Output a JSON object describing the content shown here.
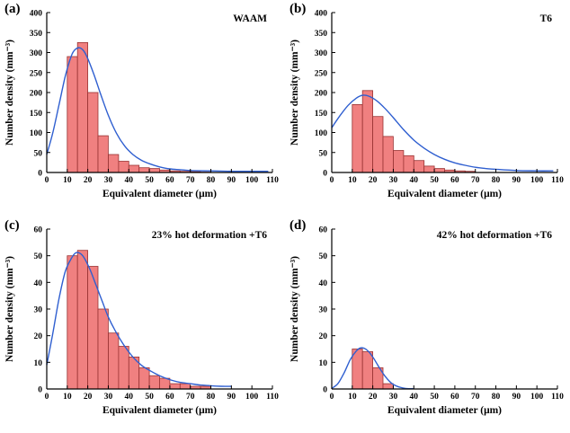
{
  "style": {
    "bar_fill": "#F08080",
    "bar_stroke": "#993333",
    "curve_color": "#2F5FD0",
    "axis_color": "#000000"
  },
  "chart_data": [
    {
      "type": "bar",
      "panel_label": "(a)",
      "title": "WAAM",
      "xlabel": "Equivalent diameter (μm)",
      "ylabel": "Number density (mm⁻³)",
      "xlim": [
        0,
        110
      ],
      "ylim": [
        0,
        400
      ],
      "xticks": [
        0,
        10,
        20,
        30,
        40,
        50,
        60,
        70,
        80,
        90,
        100,
        110
      ],
      "yticks": [
        0,
        50,
        100,
        150,
        200,
        250,
        300,
        350,
        400
      ],
      "bins_start": 10,
      "bin_width": 5,
      "bar_values": [
        290,
        325,
        200,
        92,
        45,
        28,
        18,
        12,
        10,
        6,
        4,
        3,
        2,
        1
      ],
      "curve_points": [
        [
          0,
          45
        ],
        [
          3,
          100
        ],
        [
          6,
          170
        ],
        [
          9,
          240
        ],
        [
          12,
          292
        ],
        [
          14,
          308
        ],
        [
          16,
          312
        ],
        [
          18,
          304
        ],
        [
          20,
          285
        ],
        [
          23,
          245
        ],
        [
          26,
          200
        ],
        [
          30,
          143
        ],
        [
          34,
          98
        ],
        [
          38,
          66
        ],
        [
          42,
          45
        ],
        [
          46,
          31
        ],
        [
          50,
          22
        ],
        [
          55,
          14
        ],
        [
          60,
          9
        ],
        [
          65,
          7
        ],
        [
          70,
          5
        ],
        [
          80,
          4
        ],
        [
          90,
          3
        ],
        [
          100,
          3
        ],
        [
          108,
          3
        ]
      ]
    },
    {
      "type": "bar",
      "panel_label": "(b)",
      "title": "T6",
      "xlabel": "Equivalent diameter (μm)",
      "ylabel": "Number density (mm⁻³)",
      "xlim": [
        0,
        110
      ],
      "ylim": [
        0,
        400
      ],
      "xticks": [
        0,
        10,
        20,
        30,
        40,
        50,
        60,
        70,
        80,
        90,
        100,
        110
      ],
      "yticks": [
        0,
        50,
        100,
        150,
        200,
        250,
        300,
        350,
        400
      ],
      "bins_start": 10,
      "bin_width": 5,
      "bar_values": [
        170,
        205,
        140,
        90,
        55,
        42,
        30,
        16,
        10,
        6,
        4,
        3
      ],
      "curve_points": [
        [
          0,
          112
        ],
        [
          4,
          142
        ],
        [
          8,
          168
        ],
        [
          12,
          186
        ],
        [
          15,
          193
        ],
        [
          18,
          191
        ],
        [
          22,
          179
        ],
        [
          26,
          160
        ],
        [
          30,
          137
        ],
        [
          35,
          107
        ],
        [
          40,
          81
        ],
        [
          45,
          61
        ],
        [
          50,
          45
        ],
        [
          55,
          33
        ],
        [
          60,
          24
        ],
        [
          65,
          18
        ],
        [
          70,
          13
        ],
        [
          75,
          10
        ],
        [
          80,
          8
        ],
        [
          90,
          5
        ],
        [
          100,
          4
        ],
        [
          108,
          4
        ]
      ]
    },
    {
      "type": "bar",
      "panel_label": "(c)",
      "title": "23% hot deformation +T6",
      "xlabel": "Equivalent diameter (μm)",
      "ylabel": "Number density (mm⁻³)",
      "xlim": [
        0,
        110
      ],
      "ylim": [
        0,
        60
      ],
      "xticks": [
        0,
        10,
        20,
        30,
        40,
        50,
        60,
        70,
        80,
        90,
        100,
        110
      ],
      "yticks": [
        0,
        10,
        20,
        30,
        40,
        50,
        60
      ],
      "bins_start": 10,
      "bin_width": 5,
      "bar_values": [
        50,
        52,
        46,
        30,
        21,
        16,
        12,
        8,
        5,
        4,
        2,
        2,
        1,
        1
      ],
      "curve_points": [
        [
          0,
          9
        ],
        [
          3,
          21
        ],
        [
          6,
          34
        ],
        [
          9,
          44
        ],
        [
          12,
          49
        ],
        [
          14,
          51
        ],
        [
          16,
          51
        ],
        [
          18,
          49.5
        ],
        [
          21,
          45
        ],
        [
          24,
          39
        ],
        [
          27,
          33
        ],
        [
          30,
          27
        ],
        [
          34,
          21
        ],
        [
          38,
          16
        ],
        [
          42,
          12
        ],
        [
          46,
          9
        ],
        [
          50,
          7
        ],
        [
          55,
          5
        ],
        [
          60,
          3.5
        ],
        [
          65,
          2.5
        ],
        [
          70,
          2
        ],
        [
          75,
          1.5
        ],
        [
          80,
          1.2
        ],
        [
          85,
          1
        ],
        [
          90,
          1
        ]
      ]
    },
    {
      "type": "bar",
      "panel_label": "(d)",
      "title": "42% hot deformation +T6",
      "xlabel": "Equivalent diameter (μm)",
      "ylabel": "Number density (mm⁻³)",
      "xlim": [
        0,
        110
      ],
      "ylim": [
        0,
        60
      ],
      "xticks": [
        0,
        10,
        20,
        30,
        40,
        50,
        60,
        70,
        80,
        90,
        100,
        110
      ],
      "yticks": [
        0,
        10,
        20,
        30,
        40,
        50,
        60
      ],
      "bins_start": 10,
      "bin_width": 5,
      "bar_values": [
        15,
        14,
        8,
        2
      ],
      "curve_points": [
        [
          0,
          0.2
        ],
        [
          3,
          2
        ],
        [
          6,
          6
        ],
        [
          9,
          11
        ],
        [
          12,
          14.3
        ],
        [
          14,
          15.4
        ],
        [
          16,
          15.2
        ],
        [
          18,
          14
        ],
        [
          20,
          12
        ],
        [
          22,
          9.5
        ],
        [
          24,
          7
        ],
        [
          26,
          4.8
        ],
        [
          28,
          3
        ],
        [
          30,
          1.7
        ],
        [
          33,
          0.7
        ],
        [
          36,
          0.2
        ],
        [
          40,
          0.1
        ]
      ]
    }
  ]
}
